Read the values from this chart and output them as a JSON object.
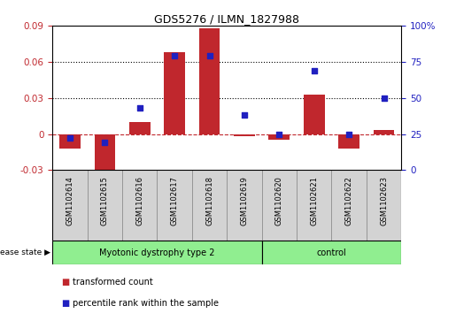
{
  "title": "GDS5276 / ILMN_1827988",
  "samples": [
    "GSM1102614",
    "GSM1102615",
    "GSM1102616",
    "GSM1102617",
    "GSM1102618",
    "GSM1102619",
    "GSM1102620",
    "GSM1102621",
    "GSM1102622",
    "GSM1102623"
  ],
  "bar_values": [
    -0.012,
    -0.032,
    0.01,
    0.068,
    0.088,
    -0.002,
    -0.005,
    0.033,
    -0.012,
    0.003
  ],
  "dot_percentiles": [
    22,
    19,
    43,
    79,
    79,
    38,
    25,
    69,
    25,
    50
  ],
  "bar_color": "#C0272D",
  "dot_color": "#2020C0",
  "ylim_left": [
    -0.03,
    0.09
  ],
  "ylim_right": [
    0,
    100
  ],
  "yticks_left": [
    -0.03,
    0.0,
    0.03,
    0.06,
    0.09
  ],
  "ytick_labels_left": [
    "-0.03",
    "0",
    "0.03",
    "0.06",
    "0.09"
  ],
  "yticks_right": [
    0,
    25,
    50,
    75,
    100
  ],
  "ytick_labels_right": [
    "0",
    "25",
    "50",
    "75",
    "100%"
  ],
  "hlines": [
    0.03,
    0.06
  ],
  "group1_label": "Myotonic dystrophy type 2",
  "group2_label": "control",
  "group1_count": 6,
  "group2_count": 4,
  "group_color": "#90EE90",
  "label_bg_color": "#D3D3D3",
  "disease_state_label": "disease state",
  "legend_bar_label": "transformed count",
  "legend_dot_label": "percentile rank within the sample",
  "bar_width": 0.6,
  "zero_line_color": "#C0272D",
  "zero_line_style": "--",
  "hline_style": ":",
  "hline_color": "black"
}
